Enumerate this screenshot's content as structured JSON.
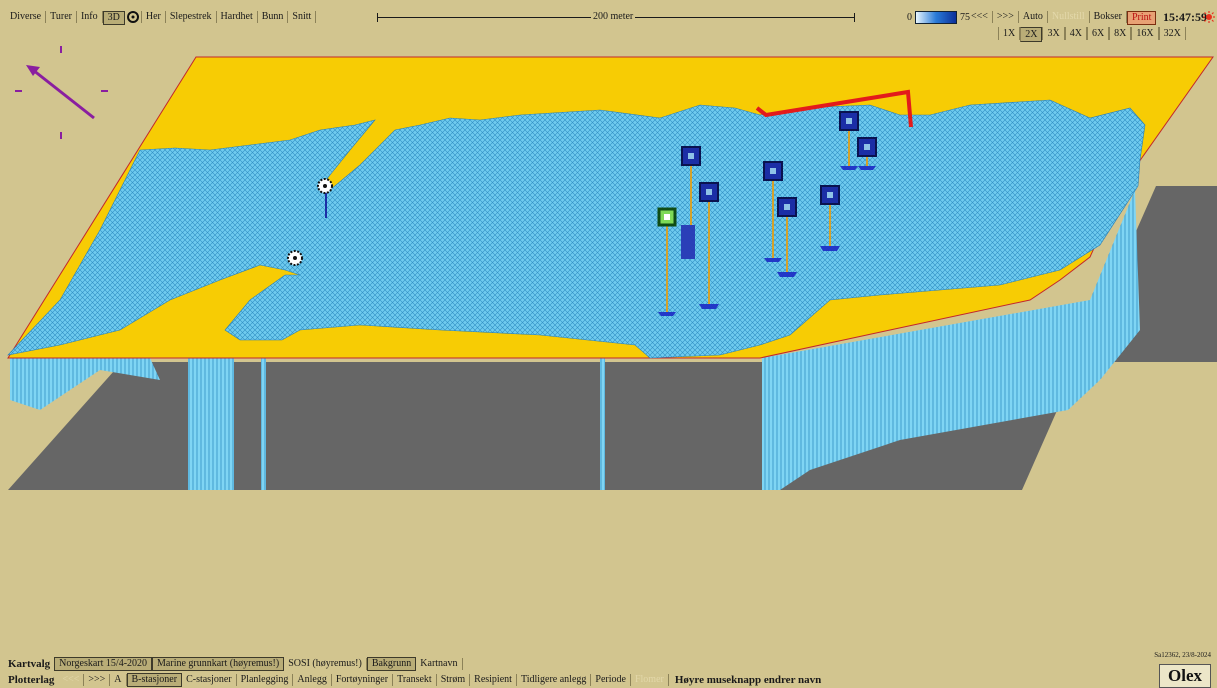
{
  "top_menu": [
    {
      "label": "Diverse"
    },
    {
      "label": "Turer"
    },
    {
      "label": "Info"
    },
    {
      "label": "3D",
      "active": true
    },
    {
      "label": "Her"
    },
    {
      "label": "Slepestrek"
    },
    {
      "label": "Hardhet"
    },
    {
      "label": "Bunn"
    },
    {
      "label": "Snitt"
    }
  ],
  "scale_label": "200 meter",
  "depth": {
    "min": "0",
    "max": "75"
  },
  "right_controls": {
    "prev": "<<<",
    "next": ">>>",
    "auto": "Auto",
    "nullstill": "Nullstill",
    "bokser": "Bokser",
    "print": "Print"
  },
  "clock": "15:47:59",
  "zoom_levels": [
    {
      "label": "1X"
    },
    {
      "label": "2X",
      "active": true
    },
    {
      "label": "3X"
    },
    {
      "label": "4X"
    },
    {
      "label": "6X"
    },
    {
      "label": "8X"
    },
    {
      "label": "16X"
    },
    {
      "label": "32X"
    }
  ],
  "map_layers": {
    "title": "Kartvalg",
    "items": [
      {
        "label": "Norgeskart 15/4-2020",
        "active": true
      },
      {
        "label": "Marine grunnkart (høyremus!)",
        "active": true
      },
      {
        "label": "SOSI (høyremus!)",
        "active": false
      },
      {
        "label": "Bakgrunn",
        "active": true
      },
      {
        "label": "Kartnavn",
        "active": false
      }
    ]
  },
  "plot_layers": {
    "title": "Plotterlag",
    "prev": "<<<",
    "next": ">>>",
    "items": [
      {
        "label": "A"
      },
      {
        "label": "B-stasjoner",
        "active": true
      },
      {
        "label": "C-stasjoner"
      },
      {
        "label": "Planlegging"
      },
      {
        "label": "Anlegg"
      },
      {
        "label": "Fortøyninger"
      },
      {
        "label": "Transekt"
      },
      {
        "label": "Strøm"
      },
      {
        "label": "Resipient"
      },
      {
        "label": "Tidligere anlegg"
      },
      {
        "label": "Periode"
      },
      {
        "label": "Flomer",
        "dim": true
      }
    ],
    "hint": "Høyre museknapp endrer navn"
  },
  "version": "Sa12362, 23/8-2024",
  "brand": "Olex",
  "colors": {
    "background": "#d2c58f",
    "land": "#f7cc04",
    "seabed": "#62c4ea",
    "shadow": "#666666",
    "station_blue": "#1b2ea6",
    "station_green": "#2aa83a",
    "boundary_red": "#e31b1b",
    "compass": "#8a1ea0"
  }
}
